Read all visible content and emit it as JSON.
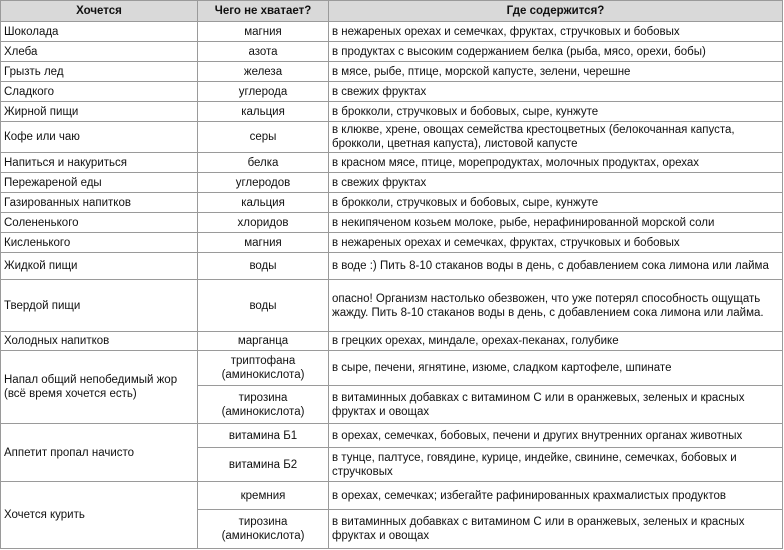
{
  "table": {
    "header": [
      "Хочется",
      "Чего не хватает?",
      "Где содержится?"
    ],
    "groups": [
      {
        "want": "Шоколада",
        "items": [
          {
            "lack": "магния",
            "where": "в нежареных орехах и семечках, фруктах, стручковых и бобовых"
          }
        ]
      },
      {
        "want": "Хлеба",
        "items": [
          {
            "lack": "азота",
            "where": "в продуктах с высоким содержанием белка (рыба, мясо, орехи, бобы)"
          }
        ]
      },
      {
        "want": "Грызть лед",
        "items": [
          {
            "lack": "железа",
            "where": "в мясе, рыбе, птице, морской капусте, зелени, черешне"
          }
        ]
      },
      {
        "want": "Сладкого",
        "items": [
          {
            "lack": "углерода",
            "where": "в свежих фруктах"
          }
        ]
      },
      {
        "want": "Жирной пищи",
        "items": [
          {
            "lack": "кальция",
            "where": "в брокколи, стручковых и бобовых, сыре, кунжуте"
          }
        ]
      },
      {
        "want": "Кофе или чаю",
        "items": [
          {
            "lack": "серы",
            "where": "в клюкве, хрене, овощах семейства крестоцветных (белокочанная капуста, брокколи, цветная капуста), листовой капусте"
          }
        ]
      },
      {
        "want": "Напиться и накуриться",
        "items": [
          {
            "lack": "белка",
            "where": "в красном мясе, птице, морепродуктах, молочных продуктах, орехах"
          }
        ]
      },
      {
        "want": "Пережареной еды",
        "items": [
          {
            "lack": "углеродов",
            "where": "в свежих фруктах"
          }
        ]
      },
      {
        "want": "Газированных напитков",
        "items": [
          {
            "lack": "кальция",
            "where": "в брокколи, стручковых и бобовых, сыре, кунжуте"
          }
        ]
      },
      {
        "want": "Солененького",
        "items": [
          {
            "lack": "хлоридов",
            "where": "в некипяченом козьем молоке, рыбе, нерафинированной морской соли"
          }
        ]
      },
      {
        "want": "Кисленького",
        "items": [
          {
            "lack": "магния",
            "where": "в нежареных орехах и семечках, фруктах, стручковых и бобовых"
          }
        ]
      },
      {
        "want": "Жидкой пищи",
        "items": [
          {
            "lack": "воды",
            "where": "в воде :) Пить 8-10 стаканов воды в день, с добавлением сока лимона или лайма"
          }
        ]
      },
      {
        "want": "Твердой пищи",
        "items": [
          {
            "lack": "воды",
            "where": "опасно! Организм настолько обезвожен, что уже потерял способность ощущать жажду. Пить 8-10 стаканов воды в день, с добавлением сока лимона или лайма."
          }
        ]
      },
      {
        "want": "Холодных напитков",
        "items": [
          {
            "lack": "марганца",
            "where": "в грецких орехах, миндале, орехах-пеканах, голубике"
          }
        ]
      },
      {
        "want": "Напал общий непобедимый жор (всё время хочется есть)",
        "items": [
          {
            "lack": "триптофана (аминокислота)",
            "where": "в сыре, печени, ягнятине, изюме, сладком картофеле, шпинате"
          },
          {
            "lack": "тирозина (аминокислота)",
            "where": "в витаминных добавках с витамином С или в оранжевых, зеленых и красных фруктах и овощах"
          }
        ]
      },
      {
        "want": "Аппетит пропал начисто",
        "items": [
          {
            "lack": "витамина Б1",
            "where": "в орехах, семечках, бобовых, печени и других внутренних органах животных"
          },
          {
            "lack": "витамина Б2",
            "where": "в тунце, палтусе, говядине, курице, индейке, свинине, семечках, бобовых и стручковых"
          }
        ]
      },
      {
        "want": "Хочется курить",
        "items": [
          {
            "lack": "кремния",
            "where": "в орехах, семечках; избегайте рафинированных крахмалистых продуктов"
          },
          {
            "lack": "тирозина (аминокислота)",
            "where": "в витаминных добавках с витамином С или в оранжевых, зеленых и красных фруктах и овощах"
          }
        ]
      }
    ]
  }
}
